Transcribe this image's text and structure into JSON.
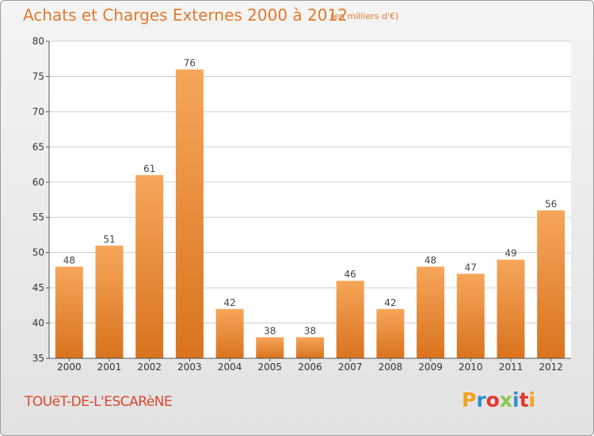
{
  "header": {
    "title": "Achats et Charges Externes 2000 à 2012",
    "subtitle": "(en milliers d'€)"
  },
  "footer": {
    "town": "TOUëT-DE-L'ESCARèNE",
    "brand": "Proxiti",
    "brand_colors": [
      "#f5a21b",
      "#2f8fd8",
      "#e3362c",
      "#8bc34a",
      "#2f8fd8",
      "#e3362c",
      "#f5a21b"
    ]
  },
  "colors": {
    "bar_top": "#f6a65a",
    "bar_bottom": "#d9731e",
    "axis": "#555555",
    "grid": "#d0d0d0",
    "title": "#e07a2e"
  },
  "chart_data": {
    "type": "bar",
    "categories": [
      "2000",
      "2001",
      "2002",
      "2003",
      "2004",
      "2005",
      "2006",
      "2007",
      "2008",
      "2009",
      "2010",
      "2011",
      "2012"
    ],
    "values": [
      48,
      51,
      61,
      76,
      42,
      38,
      38,
      46,
      42,
      48,
      47,
      49,
      56
    ],
    "ylim": [
      35,
      80
    ],
    "yticks": [
      35,
      40,
      45,
      50,
      55,
      60,
      65,
      70,
      75,
      80
    ],
    "grid": "horizontal",
    "legend": "none"
  }
}
